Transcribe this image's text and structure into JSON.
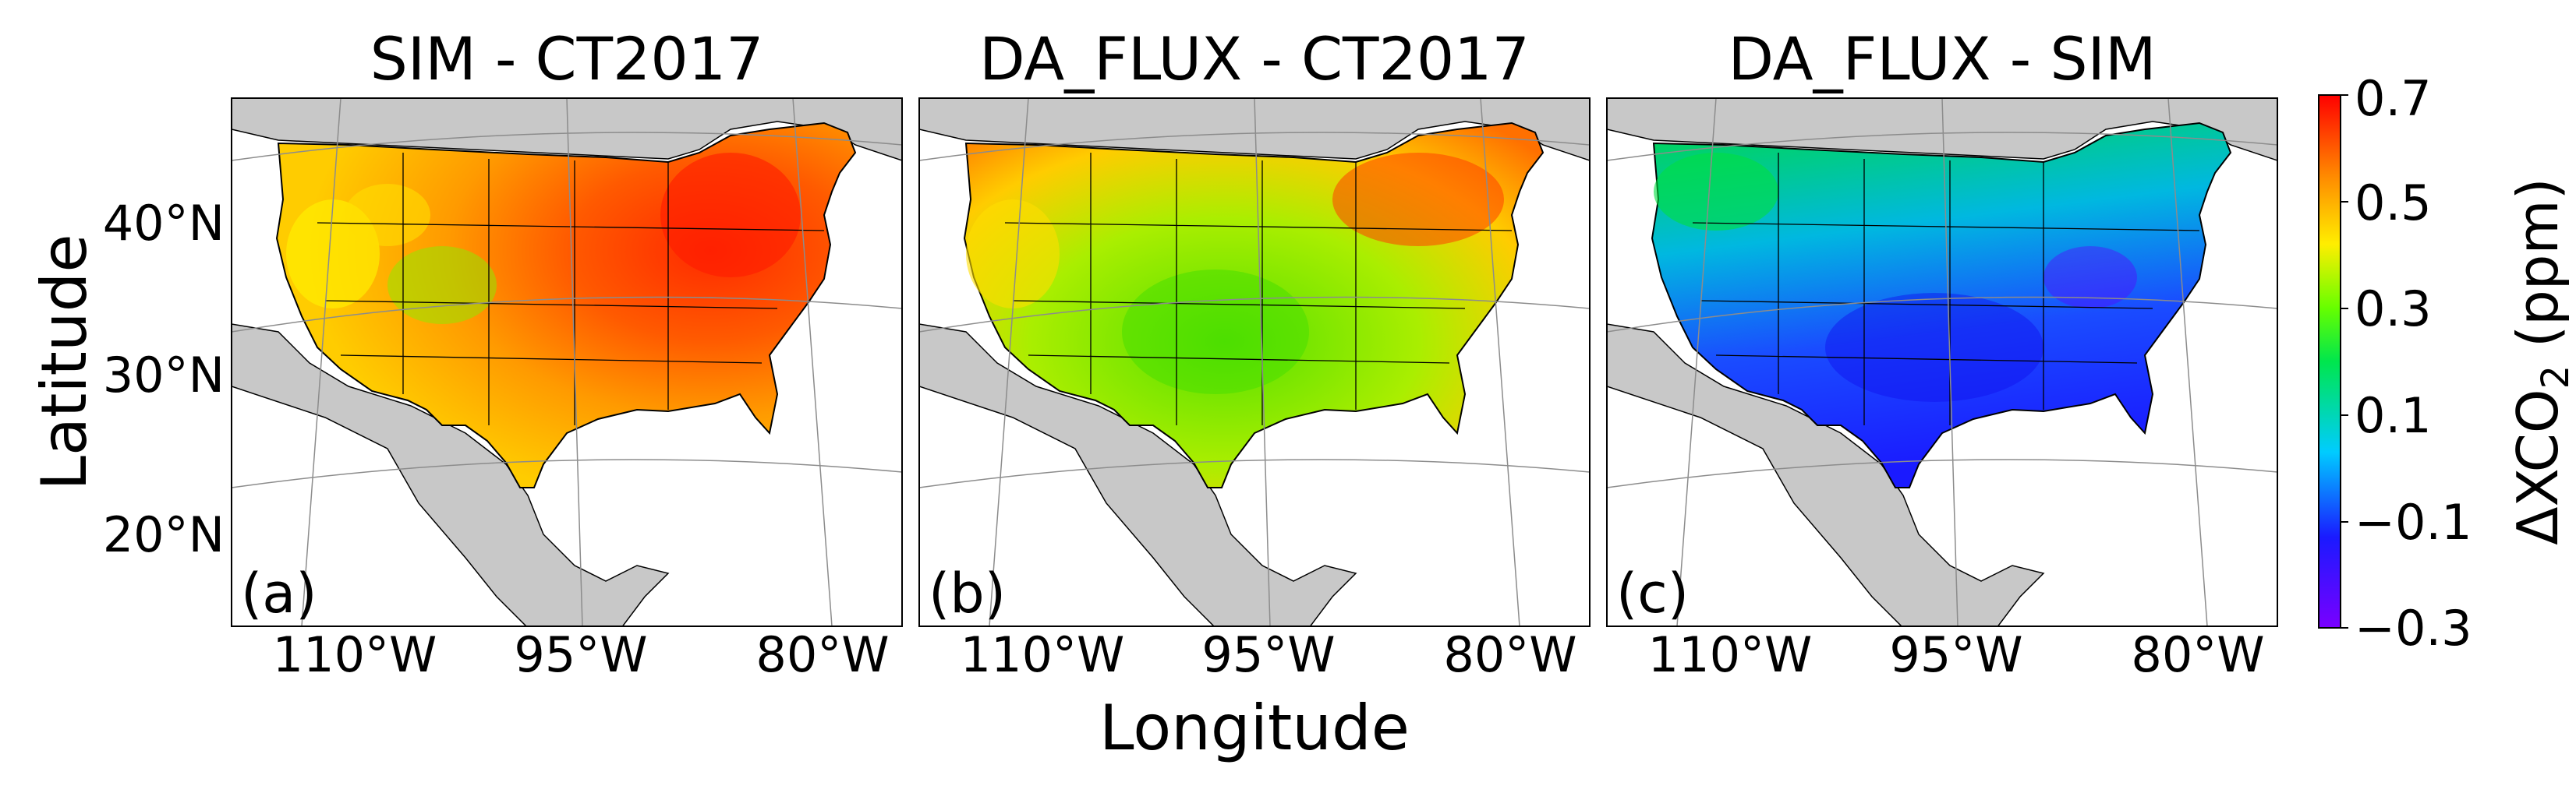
{
  "figure": {
    "xlabel": "Longitude",
    "ylabel": "Latitude",
    "lat_ticks": [
      "40°N",
      "30°N",
      "20°N"
    ],
    "lon_ticks": [
      "110°W",
      "95°W",
      "80°W"
    ]
  },
  "panels": [
    {
      "title": "SIM - CT2017",
      "label": "(a)"
    },
    {
      "title": "DA_FLUX - CT2017",
      "label": "(b)"
    },
    {
      "title": "DA_FLUX - SIM",
      "label": "(c)"
    }
  ],
  "colorbar": {
    "label_prefix": "ΔXCO",
    "label_sub": "2",
    "label_suffix": " (ppm)",
    "min": -0.3,
    "max": 0.7,
    "ticks": [
      "0.7",
      "0.5",
      "0.3",
      "0.1",
      "−0.1",
      "−0.3"
    ],
    "colormap": "rainbow"
  },
  "colors": {
    "land_background": "#c8c8c8",
    "ocean": "#ffffff",
    "border_line": "#000000",
    "graticule": "#8c8c8c"
  }
}
